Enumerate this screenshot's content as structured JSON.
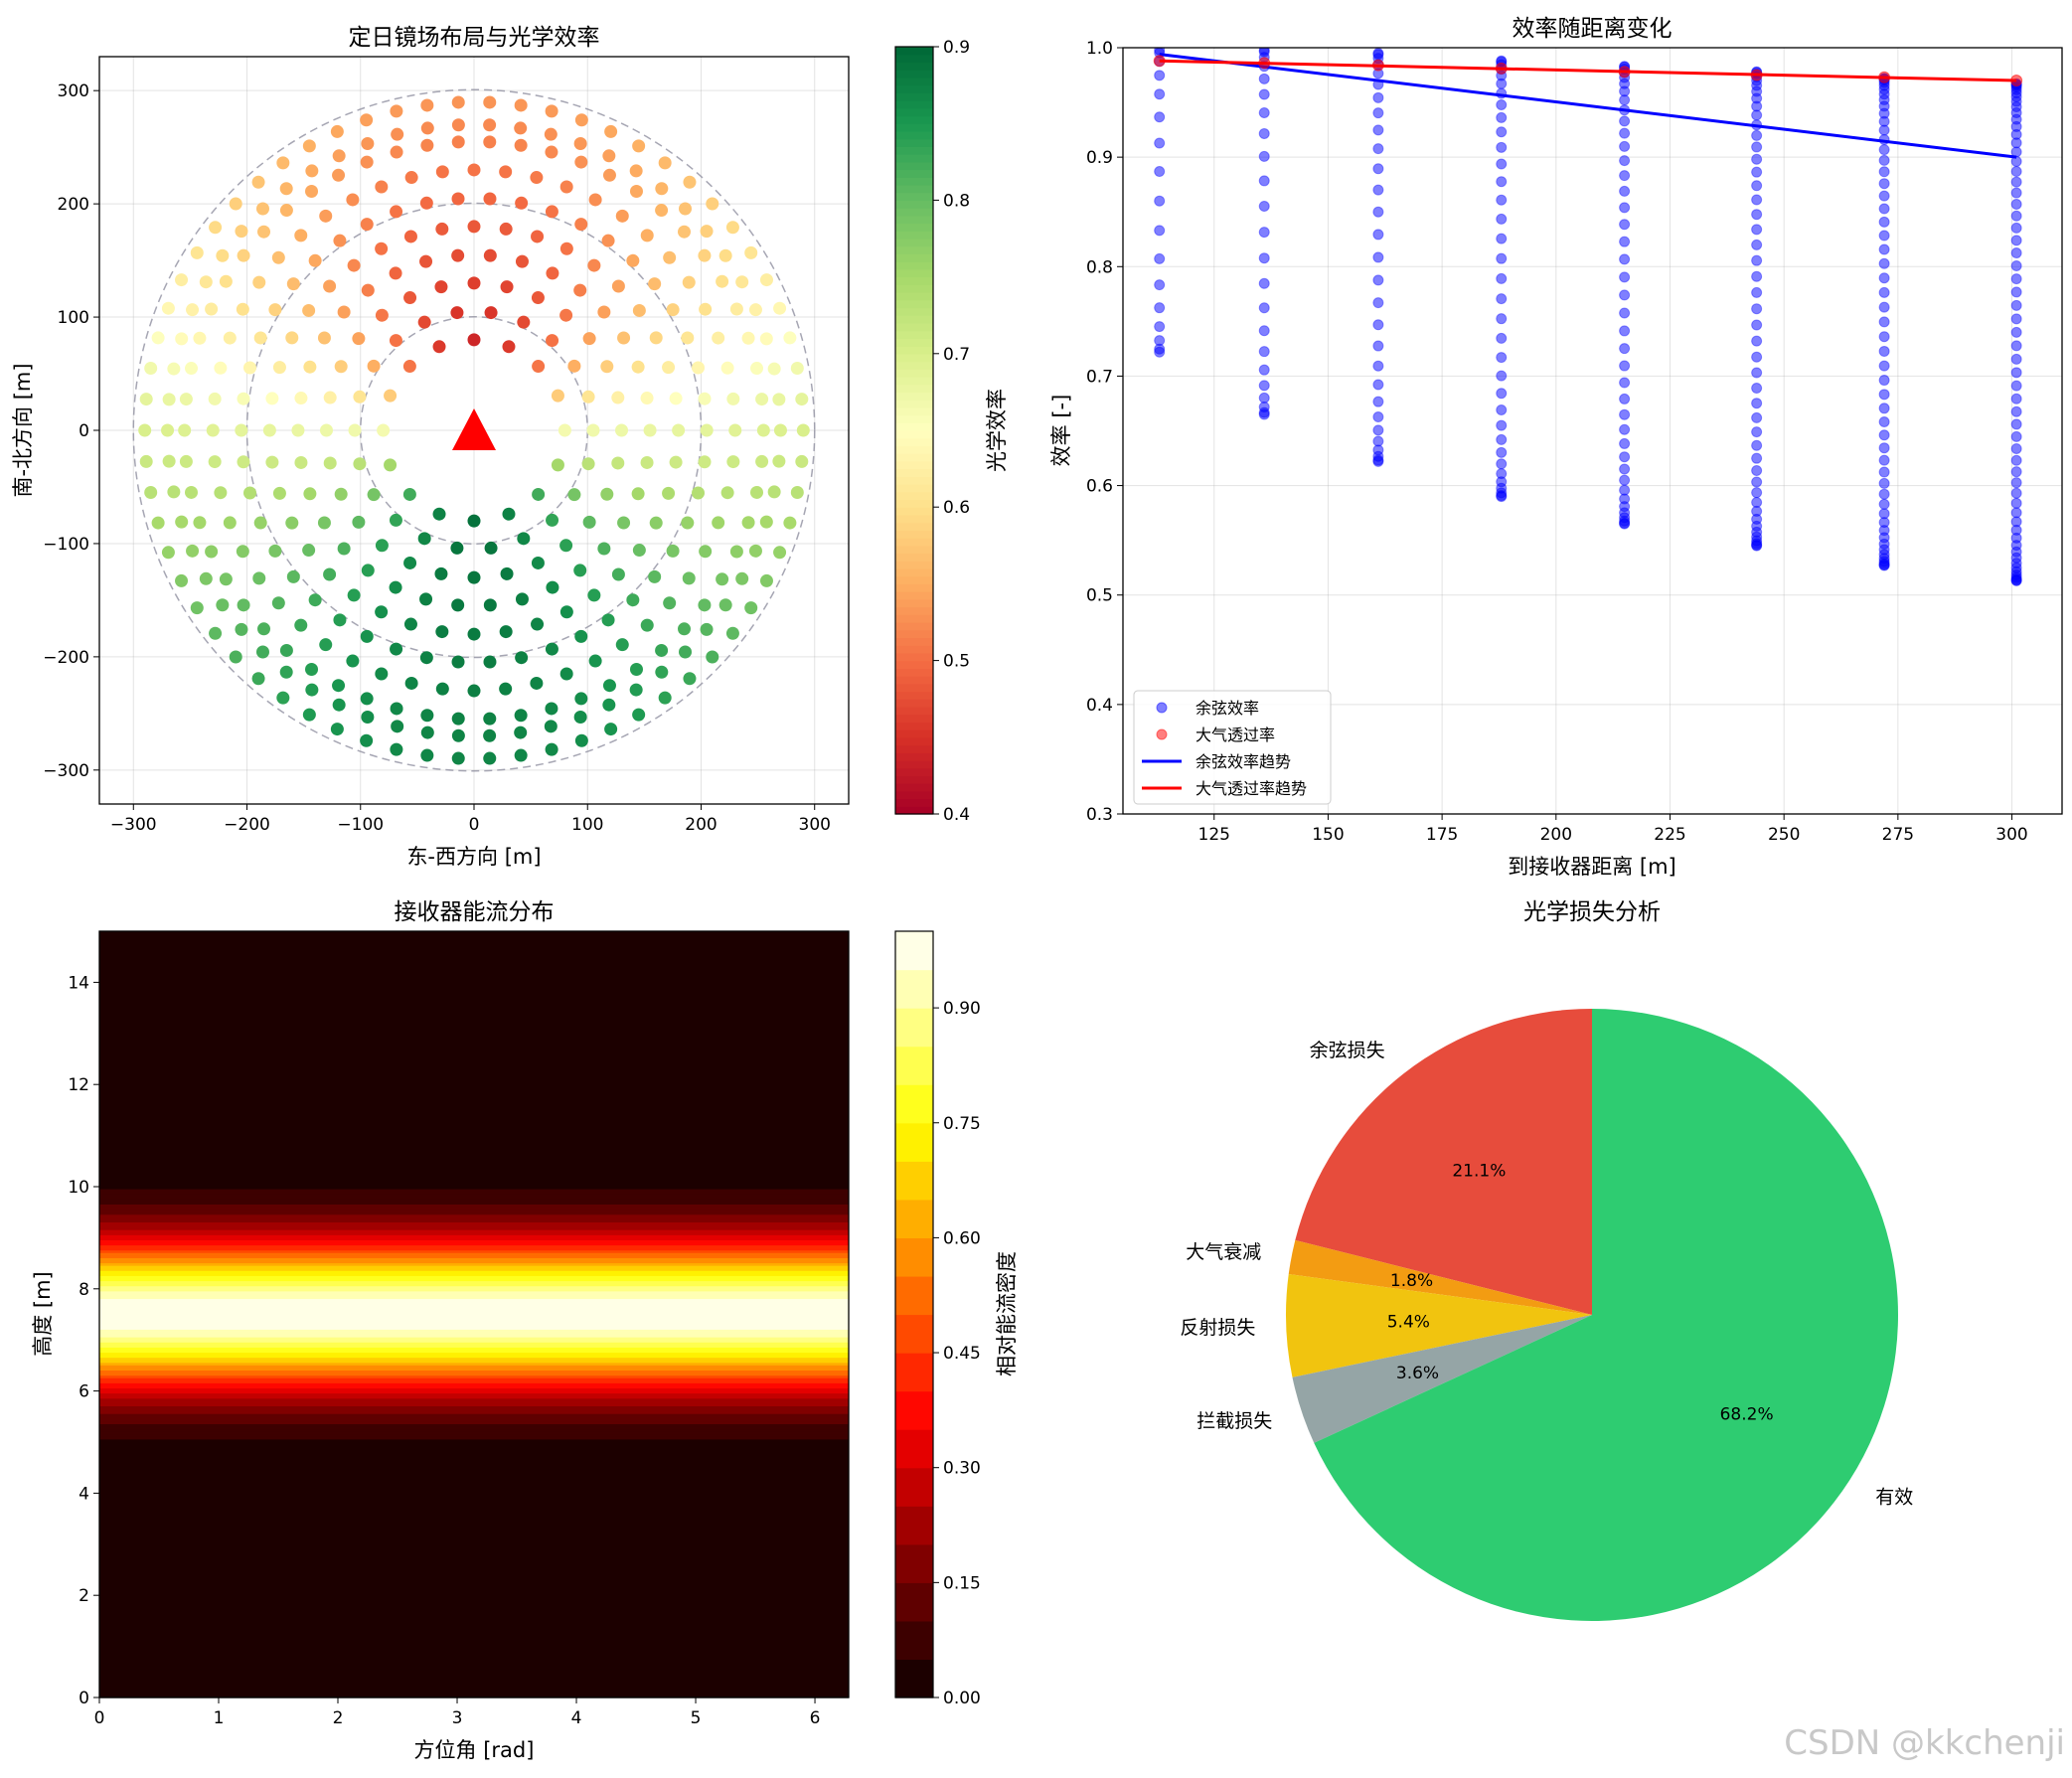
{
  "chart_data": [
    {
      "type": "scatter",
      "title": "定日镜场布局与光学效率",
      "xlabel": "东-西方向 [m]",
      "ylabel": "南-北方向 [m]",
      "xlim": [
        -330,
        330
      ],
      "ylim": [
        -330,
        330
      ],
      "xticks": [
        -300,
        -200,
        -100,
        0,
        100,
        200,
        300
      ],
      "yticks": [
        -300,
        -200,
        -100,
        0,
        100,
        200,
        300
      ],
      "grid": true,
      "rings": [
        {
          "radius": 80,
          "count": 16
        },
        {
          "radius": 105,
          "count": 22
        },
        {
          "radius": 130,
          "count": 28
        },
        {
          "radius": 155,
          "count": 34
        },
        {
          "radius": 180,
          "count": 40
        },
        {
          "radius": 205,
          "count": 46
        },
        {
          "radius": 230,
          "count": 52
        },
        {
          "radius": 255,
          "count": 58
        },
        {
          "radius": 270,
          "count": 62
        },
        {
          "radius": 290,
          "count": 66
        }
      ],
      "boundary_circles": [
        100,
        200,
        300
      ],
      "receiver": {
        "x": 0,
        "y": 0,
        "color": "#ff0000"
      },
      "colorbar": {
        "label": "光学效率",
        "min": 0.4,
        "max": 0.9,
        "ticks": [
          "0.4",
          "0.5",
          "0.6",
          "0.7",
          "0.8",
          "0.9"
        ],
        "colormap": "RdYlGn"
      },
      "efficiency_model": {
        "ring_radius_min": 80,
        "ring_radius_max": 290,
        "north_low": 0.44,
        "north_high": 0.53,
        "south_low": 0.89,
        "south_high": 0.87
      }
    },
    {
      "type": "scatter+line",
      "title": "效率随距离变化",
      "xlabel": "到接收器距离 [m]",
      "ylabel": "效率 [-]",
      "xlim": [
        105,
        311
      ],
      "ylim": [
        0.3,
        1.0
      ],
      "xticks": [
        125,
        150,
        175,
        200,
        225,
        250,
        275,
        300
      ],
      "yticks": [
        "0.3",
        "0.4",
        "0.5",
        "0.6",
        "0.7",
        "0.8",
        "0.9",
        "1.0"
      ],
      "grid": true,
      "legend_position": "lower-left",
      "distances": [
        113,
        136,
        161,
        188,
        215,
        244,
        272,
        301
      ],
      "cosine_min": [
        0.722,
        0.665,
        0.622,
        0.59,
        0.565,
        0.545,
        0.527,
        0.513
      ],
      "cosine_max": [
        0.998,
        0.998,
        0.995,
        0.988,
        0.983,
        0.978,
        0.972,
        0.967
      ],
      "cosine_counts": [
        16,
        22,
        28,
        34,
        40,
        46,
        52,
        58
      ],
      "atmospheric": [
        0.988,
        0.986,
        0.984,
        0.981,
        0.978,
        0.975,
        0.973,
        0.97
      ],
      "cosine_trend": {
        "x": [
          113,
          301
        ],
        "y": [
          0.994,
          0.9
        ]
      },
      "atmospheric_trend": {
        "x": [
          113,
          301
        ],
        "y": [
          0.988,
          0.97
        ]
      },
      "series": [
        {
          "name": "余弦效率",
          "color": "#0000ff",
          "kind": "scatter"
        },
        {
          "name": "大气透过率",
          "color": "#ff0000",
          "kind": "scatter"
        },
        {
          "name": "余弦效率趋势",
          "color": "#0000ff",
          "kind": "line"
        },
        {
          "name": "大气透过率趋势",
          "color": "#ff0000",
          "kind": "line"
        }
      ]
    },
    {
      "type": "heatmap",
      "title": "接收器能流分布",
      "xlabel": "方位角 [rad]",
      "ylabel": "高度 [m]",
      "xlim": [
        0,
        6.283
      ],
      "ylim": [
        0,
        15
      ],
      "xticks": [
        0,
        1,
        2,
        3,
        4,
        5,
        6
      ],
      "yticks": [
        0,
        2,
        4,
        6,
        8,
        10,
        12,
        14
      ],
      "flux_profile": {
        "center": 7.5,
        "sigma": 1.0
      },
      "levels": 20,
      "colorbar": {
        "label": "相对能流密度",
        "min": 0,
        "max": 1.0,
        "ticks": [
          "0.00",
          "0.15",
          "0.30",
          "0.45",
          "0.60",
          "0.75",
          "0.90"
        ],
        "colormap": "hot"
      }
    },
    {
      "type": "pie",
      "title": "光学损失分析",
      "start_angle": 90,
      "direction": "counterclockwise",
      "slices": [
        {
          "label": "余弦损失",
          "value": 21.1,
          "pct": "21.1%",
          "color": "#e74c3c"
        },
        {
          "label": "大气衰减",
          "value": 1.8,
          "pct": "1.8%",
          "color": "#f39c12"
        },
        {
          "label": "反射损失",
          "value": 5.4,
          "pct": "5.4%",
          "color": "#f1c40f"
        },
        {
          "label": "拦截损失",
          "value": 3.6,
          "pct": "3.6%",
          "color": "#95a5a6"
        },
        {
          "label": "有效",
          "value": 68.2,
          "pct": "68.2%",
          "color": "#2ecc71"
        }
      ]
    }
  ],
  "watermark": "CSDN @kkchenji"
}
